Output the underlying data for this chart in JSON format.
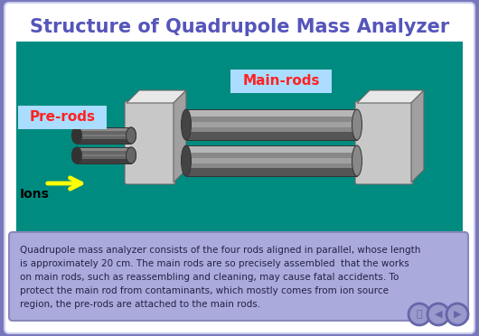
{
  "title": "Structure of Quadrupole Mass Analyzer",
  "title_color": "#5555bb",
  "title_fontsize": 15,
  "bg_outer": "#7777bb",
  "bg_white": "#ffffff",
  "bg_teal": "#008b80",
  "text_box_bg": "#aaaadd",
  "text_box_border": "#8888bb",
  "text_box_text_lines": [
    "Quadrupole mass analyzer consists of the four rods aligned in parallel, whose length",
    "is approximately 20 cm. The main rods are so precisely assembled  that the works",
    "on main rods, such as reassembling and cleaning, may cause fatal accidents. To",
    "protect the main rod from contaminants, which mostly comes from ion source",
    "region, the pre-rods are attached to the main rods."
  ],
  "label_prerods": "Pre-rods",
  "label_mainrods": "Main-rods",
  "label_ions": "Ions",
  "label_color": "#ff2222",
  "label_bg": "#aaddff",
  "arrow_color": "#ffff00",
  "nav_color": "#6666aa",
  "nav_bg": "#9999cc",
  "flange_face": "#c8c8c8",
  "flange_top": "#e8e8e8",
  "flange_side": "#a0a0a0",
  "flange_edge": "#666666",
  "rod_mid": "#888888",
  "rod_dark": "#444444",
  "rod_light": "#dddddd",
  "rod_edge": "#333333",
  "prerod_mid": "#666666",
  "prerod_dark": "#333333",
  "prerod_light": "#aaaaaa"
}
